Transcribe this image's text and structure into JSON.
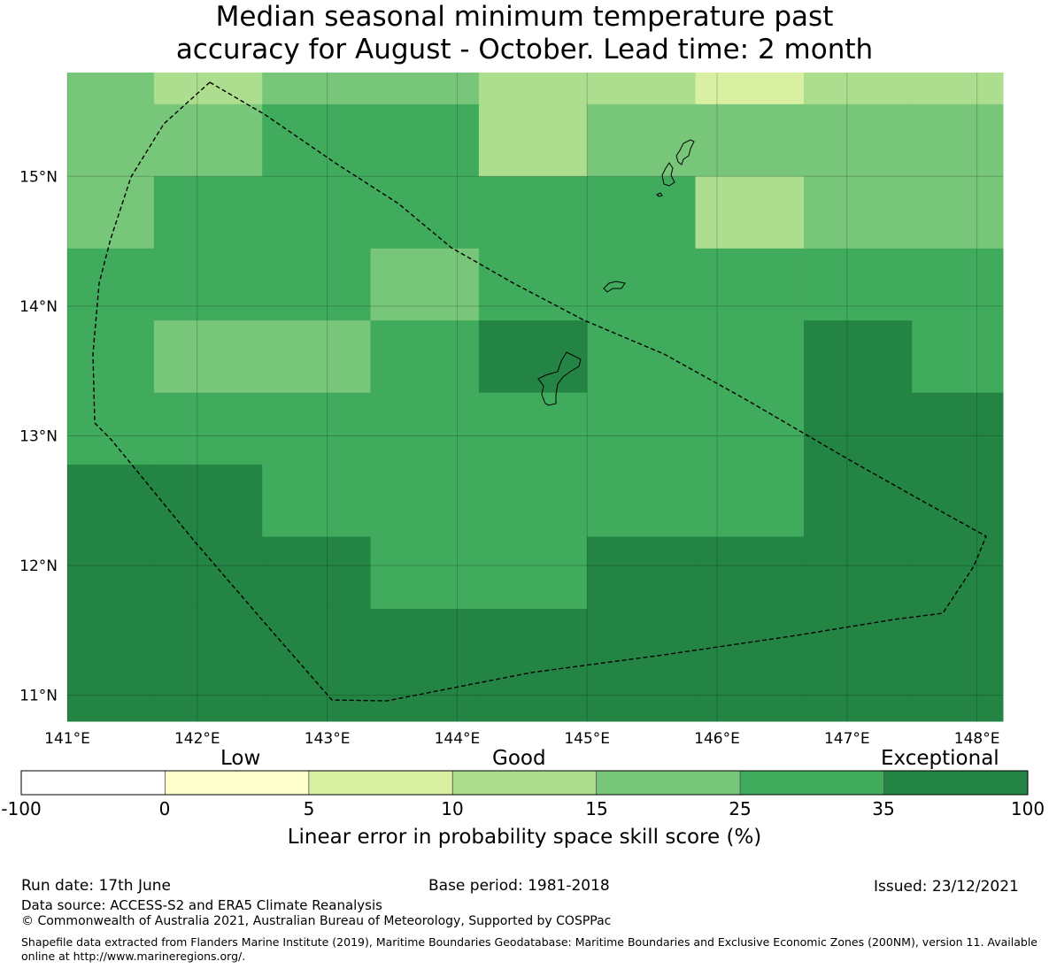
{
  "title": {
    "line1": "Median seasonal minimum temperature past",
    "line2": "accuracy for August - October. Lead time: 2 month"
  },
  "map": {
    "x_axis_labels": [
      "141°E",
      "142°E",
      "143°E",
      "144°E",
      "145°E",
      "146°E",
      "147°E",
      "148°E"
    ],
    "y_axis_labels": [
      "15°N",
      "14°N",
      "13°N",
      "12°N",
      "11°N"
    ],
    "lon_range": [
      141.0,
      148.2
    ],
    "lat_range": [
      10.8,
      15.8
    ],
    "grid": true,
    "grid_cells": {
      "lon_edges": [
        141.0,
        141.667,
        142.5,
        143.333,
        144.167,
        145.0,
        145.833,
        146.667,
        147.5,
        148.2
      ],
      "lat_edges": [
        15.8,
        15.556,
        15.0,
        14.444,
        13.889,
        13.333,
        12.778,
        12.222,
        11.667,
        10.8
      ],
      "classes": [
        [
          4,
          3,
          4,
          4,
          3,
          3,
          2,
          3,
          3
        ],
        [
          4,
          4,
          5,
          5,
          3,
          4,
          4,
          4,
          4
        ],
        [
          4,
          5,
          5,
          5,
          5,
          5,
          3,
          4,
          4
        ],
        [
          5,
          5,
          5,
          4,
          5,
          5,
          5,
          5,
          5
        ],
        [
          5,
          4,
          4,
          5,
          6,
          5,
          5,
          6,
          5
        ],
        [
          5,
          5,
          5,
          5,
          5,
          5,
          5,
          6,
          6
        ],
        [
          6,
          6,
          5,
          5,
          5,
          5,
          5,
          6,
          6
        ],
        [
          6,
          6,
          6,
          5,
          5,
          6,
          6,
          6,
          6
        ],
        [
          6,
          6,
          6,
          6,
          6,
          6,
          6,
          6,
          6
        ]
      ]
    }
  },
  "legend": {
    "category_labels": [
      "Low",
      "Good",
      "Exceptional"
    ],
    "tick_labels": [
      "-100",
      "0",
      "5",
      "10",
      "15",
      "25",
      "35",
      "100"
    ],
    "colors": [
      "#ffffff",
      "#ffffcc",
      "#d9f0a3",
      "#addd8e",
      "#78c679",
      "#41ab5d",
      "#238443"
    ],
    "title": "Linear error in probability space skill score (%)"
  },
  "footer": {
    "run_date": "Run date: 17th June",
    "base_period": "Base period: 1981-2018",
    "issued": "Issued: 23/12/2021",
    "data_source": "Data source: ACCESS-S2 and ERA5 Climate Reanalysis",
    "copyright": "© Commonwealth of Australia 2021, Australian Bureau of Meteorology, Supported by COSPPac",
    "shapefile": "Shapefile data extracted from Flanders Marine Institute (2019), Maritime Boundaries Geodatabase: Maritime Boundaries and Exclusive Economic Zones (200NM), version 11. Available online at http://www.marineregions.org/."
  }
}
